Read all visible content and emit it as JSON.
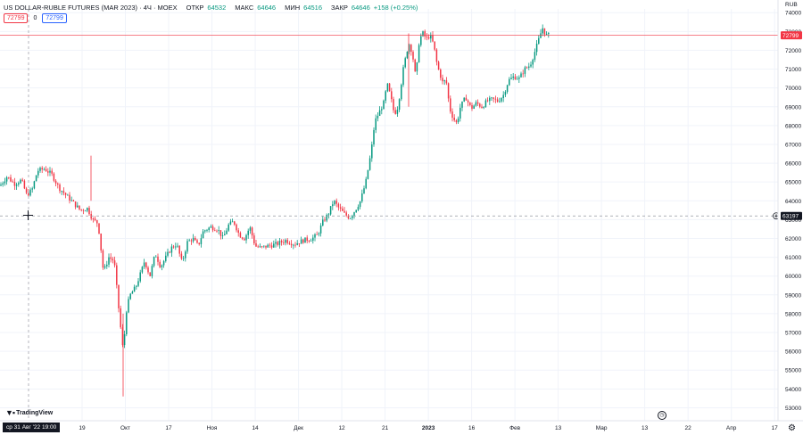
{
  "legend": {
    "title": "US DOLLAR-RUBLE FUTURES (MAR 2023) · 4Ч · MOEX",
    "open_label": "ОТКР",
    "open_value": "64532",
    "high_label": "МАКС",
    "high_value": "64646",
    "low_label": "МИН",
    "low_value": "64516",
    "close_label": "ЗАКР",
    "close_value": "64646",
    "change": "+158 (+0.25%)"
  },
  "price_boxes": {
    "sell": "72799",
    "spread": "0",
    "buy": "72799"
  },
  "crosshair": {
    "date_label": "ср 31 Авг '22  19:00",
    "price_label": "63197"
  },
  "last_price_label": "72799",
  "branding": "TradingView",
  "colors": {
    "up": "#089981",
    "down": "#f23645",
    "grid": "#f0f3fa",
    "last_price_line": "#f23645",
    "cross": "#9598a1"
  },
  "chart_data": {
    "type": "candlestick",
    "title": "US DOLLAR-RUBLE FUTURES (MAR 2023) · 4Ч · MOEX",
    "y_unit": "RUB",
    "ylim": [
      52500,
      74200
    ],
    "y_ticks": [
      53000,
      54000,
      55000,
      56000,
      57000,
      58000,
      59000,
      60000,
      61000,
      62000,
      63000,
      64000,
      65000,
      66000,
      67000,
      68000,
      69000,
      70000,
      71000,
      72000,
      73000,
      74000
    ],
    "x_ticks": [
      "19",
      "Окт",
      "17",
      "Ноя",
      "14",
      "Дек",
      "12",
      "21",
      "2023",
      "16",
      "Фев",
      "13",
      "Мар",
      "13",
      "22",
      "Апр",
      "17"
    ],
    "grid": true,
    "price_path": [
      [
        0,
        64800
      ],
      [
        8,
        65300
      ],
      [
        16,
        64900
      ],
      [
        24,
        65100
      ],
      [
        30,
        64300
      ],
      [
        36,
        64600
      ],
      [
        42,
        65600
      ],
      [
        50,
        65700
      ],
      [
        58,
        65400
      ],
      [
        66,
        64700
      ],
      [
        74,
        64300
      ],
      [
        82,
        63900
      ],
      [
        90,
        63500
      ],
      [
        98,
        63600
      ],
      [
        104,
        63000
      ],
      [
        110,
        62800
      ],
      [
        116,
        60200
      ],
      [
        122,
        61000
      ],
      [
        128,
        60800
      ],
      [
        134,
        57800
      ],
      [
        138,
        56000
      ],
      [
        142,
        58300
      ],
      [
        146,
        59000
      ],
      [
        152,
        59400
      ],
      [
        158,
        60200
      ],
      [
        162,
        60800
      ],
      [
        168,
        60000
      ],
      [
        174,
        61200
      ],
      [
        180,
        60500
      ],
      [
        186,
        61000
      ],
      [
        192,
        61500
      ],
      [
        198,
        61700
      ],
      [
        204,
        60700
      ],
      [
        210,
        61800
      ],
      [
        216,
        62000
      ],
      [
        222,
        61600
      ],
      [
        228,
        62400
      ],
      [
        236,
        62600
      ],
      [
        244,
        62500
      ],
      [
        250,
        62000
      ],
      [
        256,
        62700
      ],
      [
        262,
        62900
      ],
      [
        268,
        62200
      ],
      [
        274,
        62000
      ],
      [
        280,
        62600
      ],
      [
        286,
        61600
      ],
      [
        292,
        61500
      ],
      [
        300,
        61600
      ],
      [
        310,
        61700
      ],
      [
        320,
        61900
      ],
      [
        330,
        61700
      ],
      [
        340,
        61900
      ],
      [
        350,
        62000
      ],
      [
        356,
        62200
      ],
      [
        362,
        62900
      ],
      [
        368,
        63300
      ],
      [
        374,
        64000
      ],
      [
        380,
        63600
      ],
      [
        386,
        63300
      ],
      [
        392,
        63100
      ],
      [
        398,
        63500
      ],
      [
        404,
        64000
      ],
      [
        410,
        65000
      ],
      [
        416,
        66600
      ],
      [
        420,
        68200
      ],
      [
        426,
        68800
      ],
      [
        430,
        69200
      ],
      [
        434,
        70200
      ],
      [
        438,
        69500
      ],
      [
        442,
        68600
      ],
      [
        446,
        69000
      ],
      [
        452,
        71000
      ],
      [
        458,
        72400
      ],
      [
        462,
        71900
      ],
      [
        466,
        70500
      ],
      [
        470,
        72600
      ],
      [
        474,
        72900
      ],
      [
        478,
        72600
      ],
      [
        482,
        72800
      ],
      [
        486,
        72300
      ],
      [
        490,
        71200
      ],
      [
        496,
        70300
      ],
      [
        500,
        70400
      ],
      [
        504,
        68900
      ],
      [
        508,
        68400
      ],
      [
        512,
        68100
      ],
      [
        516,
        69000
      ],
      [
        522,
        69500
      ],
      [
        528,
        68900
      ],
      [
        534,
        69200
      ],
      [
        540,
        69000
      ],
      [
        546,
        69300
      ],
      [
        552,
        69400
      ],
      [
        558,
        69300
      ],
      [
        564,
        69600
      ],
      [
        570,
        70400
      ],
      [
        576,
        70600
      ],
      [
        582,
        70500
      ],
      [
        588,
        71000
      ],
      [
        594,
        71200
      ],
      [
        600,
        72000
      ],
      [
        604,
        72600
      ],
      [
        608,
        73200
      ],
      [
        612,
        72800
      ],
      [
        616,
        72799
      ]
    ],
    "last_price": 72799,
    "crosshair_price": 63197
  }
}
